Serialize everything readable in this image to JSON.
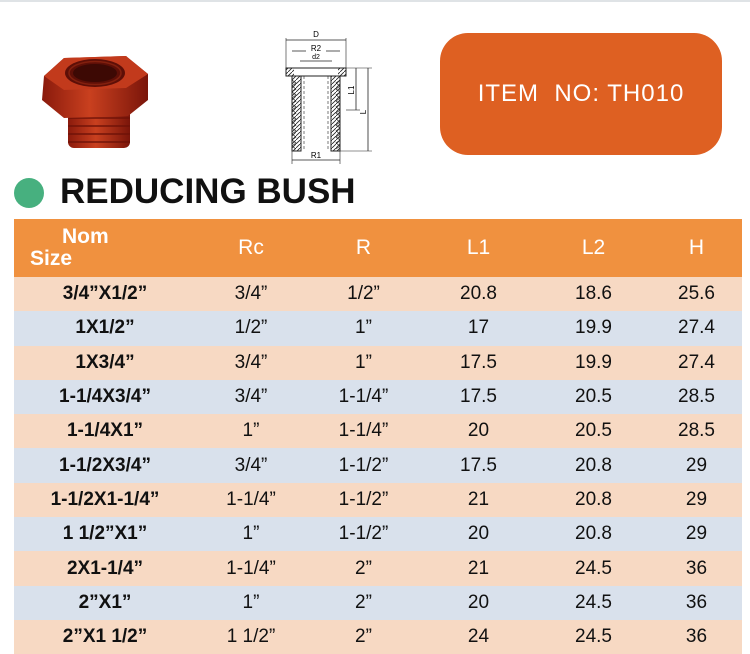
{
  "item_badge": {
    "label": "ITEM  NO: TH010"
  },
  "heading": {
    "title": "REDUCING BUSH"
  },
  "drawing": {
    "labels": {
      "d": "D",
      "r2": "R2",
      "d2": "d2",
      "l1": "L1",
      "l": "L",
      "r1": "R1"
    }
  },
  "table": {
    "headers": {
      "nom_line1": "Nom",
      "nom_line2": "Size",
      "rc": "Rc",
      "r": "R",
      "l1": "L1",
      "l2": "L2",
      "h": "H"
    },
    "rows": [
      [
        "3/4”X1/2”",
        "3/4”",
        "1/2”",
        "20.8",
        "18.6",
        "25.6"
      ],
      [
        "1X1/2”",
        "1/2”",
        "1”",
        "17",
        "19.9",
        "27.4"
      ],
      [
        "1X3/4”",
        "3/4”",
        "1”",
        "17.5",
        "19.9",
        "27.4"
      ],
      [
        "1-1/4X3/4”",
        "3/4”",
        "1-1/4”",
        "17.5",
        "20.5",
        "28.5"
      ],
      [
        "1-1/4X1”",
        "1”",
        "1-1/4”",
        "20",
        "20.5",
        "28.5"
      ],
      [
        "1-1/2X3/4”",
        "3/4”",
        "1-1/2”",
        "17.5",
        "20.8",
        "29"
      ],
      [
        "1-1/2X1-1/4”",
        "1-1/4”",
        "1-1/2”",
        "21",
        "20.8",
        "29"
      ],
      [
        "1 1/2”X1”",
        "1”",
        "1-1/2”",
        "20",
        "20.8",
        "29"
      ],
      [
        "2X1-1/4”",
        "1-1/4”",
        "2”",
        "21",
        "24.5",
        "36"
      ],
      [
        "2”X1”",
        "1”",
        "2”",
        "20",
        "24.5",
        "36"
      ],
      [
        "2”X1 1/2”",
        "1 1/2”",
        "2”",
        "24",
        "24.5",
        "36"
      ]
    ]
  },
  "colors": {
    "header_orange": "#f0913f",
    "badge_orange": "#de6022",
    "row_peach": "#f7d9c3",
    "row_blue": "#d9e1ec",
    "dot_green": "#47b07f"
  }
}
